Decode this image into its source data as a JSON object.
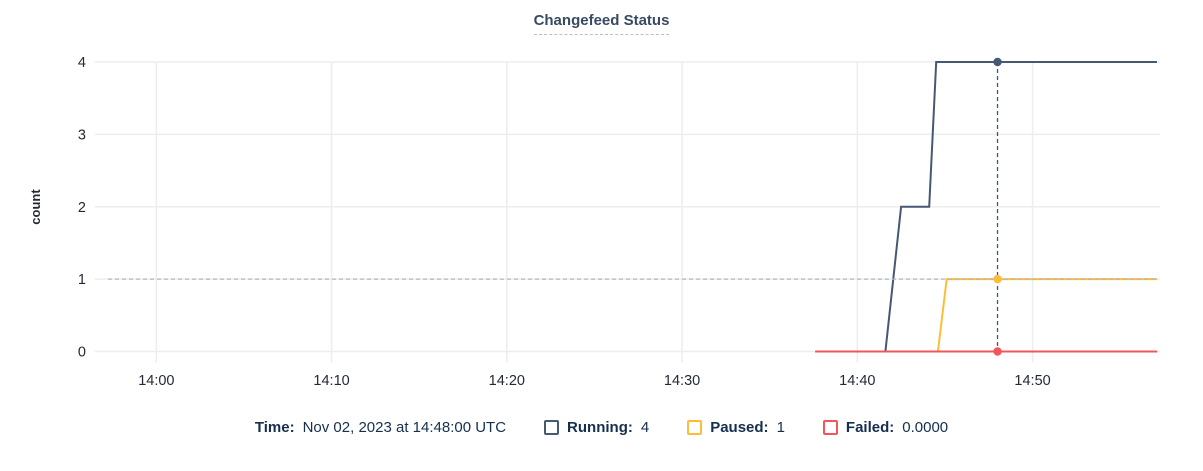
{
  "title": "Changefeed Status",
  "colors": {
    "running": "#475872",
    "paused": "#ffbd37",
    "failed": "#f2555c",
    "crosshair_vertical": "#3c5c6e",
    "crosshair_horizontal": "#aeb7c2",
    "grid": "#ededf0",
    "axis_text": "#242a35",
    "title_text": "#394a63",
    "legend_text": "#152f4e"
  },
  "chart_data": {
    "type": "line",
    "title": "Changefeed Status",
    "xlabel": "",
    "ylabel": "count",
    "ylim": [
      0,
      4
    ],
    "xlim_minutes_after_1400": [
      -3.5,
      57.1
    ],
    "grid": true,
    "legend_position": "bottom",
    "y_ticks": [
      0,
      1,
      2,
      3,
      4
    ],
    "x_ticks": [
      {
        "minute": 0,
        "label": "14:00"
      },
      {
        "minute": 10,
        "label": "14:10"
      },
      {
        "minute": 20,
        "label": "14:20"
      },
      {
        "minute": 30,
        "label": "14:30"
      },
      {
        "minute": 40,
        "label": "14:40"
      },
      {
        "minute": 50,
        "label": "14:50"
      }
    ],
    "series": [
      {
        "name": "Running",
        "color": "#475872",
        "points": [
          [
            37.6,
            0
          ],
          [
            41.6,
            0
          ],
          [
            42.5,
            2
          ],
          [
            44.1,
            2
          ],
          [
            44.5,
            4
          ],
          [
            57.1,
            4
          ]
        ]
      },
      {
        "name": "Paused",
        "color": "#ffbd37",
        "points": [
          [
            37.6,
            0
          ],
          [
            44.6,
            0
          ],
          [
            45.1,
            1
          ],
          [
            57.1,
            1
          ]
        ]
      },
      {
        "name": "Failed",
        "color": "#f2555c",
        "points": [
          [
            37.6,
            0
          ],
          [
            57.1,
            0
          ]
        ]
      }
    ],
    "crosshair": {
      "minute": 48,
      "time_label": "14:48",
      "horizontal_value": 1,
      "values": {
        "Running": 4,
        "Paused": 1,
        "Failed": 0
      }
    }
  },
  "tooltip": {
    "time_label": "Time:",
    "time_value": "Nov 02, 2023 at 14:48:00 UTC",
    "items": [
      {
        "key": "running",
        "label": "Running:",
        "value": "4"
      },
      {
        "key": "paused",
        "label": "Paused:",
        "value": "1"
      },
      {
        "key": "failed",
        "label": "Failed:",
        "value": "0.0000"
      }
    ]
  }
}
